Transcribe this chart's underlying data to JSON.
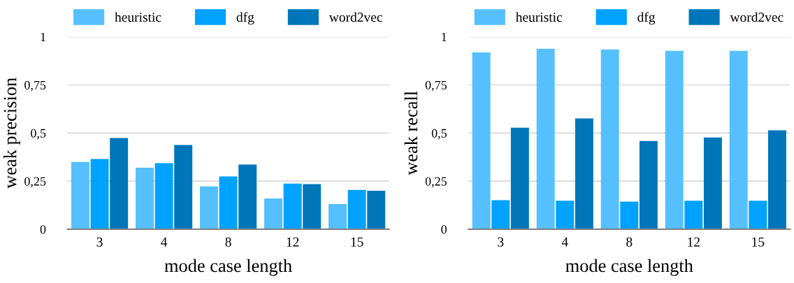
{
  "chart_data": [
    {
      "type": "bar",
      "xlabel": "mode case length",
      "ylabel": "weak precision",
      "categories": [
        "3",
        "4",
        "8",
        "12",
        "15"
      ],
      "series": [
        {
          "name": "heuristic",
          "color": "#56c0ff",
          "values": [
            0.35,
            0.32,
            0.223,
            0.16,
            0.131
          ]
        },
        {
          "name": "dfg",
          "color": "#00a2ff",
          "values": [
            0.365,
            0.343,
            0.274,
            0.237,
            0.204
          ]
        },
        {
          "name": "word2vec",
          "color": "#0076ba",
          "values": [
            0.474,
            0.438,
            0.336,
            0.234,
            0.2
          ]
        }
      ],
      "ylim": [
        0,
        1
      ],
      "yticks": [
        0,
        {
          "value": 0.25,
          "label": "0,25"
        },
        {
          "value": 0.5,
          "label": "0,5"
        },
        {
          "value": 0.75,
          "label": "0,75"
        },
        1
      ],
      "grid": "y",
      "legend": "top"
    },
    {
      "type": "bar",
      "xlabel": "mode case length",
      "ylabel": "weak recall",
      "categories": [
        "3",
        "4",
        "8",
        "12",
        "15"
      ],
      "series": [
        {
          "name": "heuristic",
          "color": "#56c0ff",
          "values": [
            0.919,
            0.938,
            0.934,
            0.927,
            0.927
          ]
        },
        {
          "name": "dfg",
          "color": "#00a2ff",
          "values": [
            0.151,
            0.148,
            0.144,
            0.148,
            0.148
          ]
        },
        {
          "name": "word2vec",
          "color": "#0076ba",
          "values": [
            0.528,
            0.576,
            0.459,
            0.477,
            0.514
          ]
        }
      ],
      "ylim": [
        0,
        1
      ],
      "yticks": [
        0,
        {
          "value": 0.25,
          "label": "0,25"
        },
        {
          "value": 0.5,
          "label": "0,5"
        },
        {
          "value": 0.75,
          "label": "0,75"
        },
        1
      ],
      "grid": "y",
      "legend": "top"
    }
  ]
}
